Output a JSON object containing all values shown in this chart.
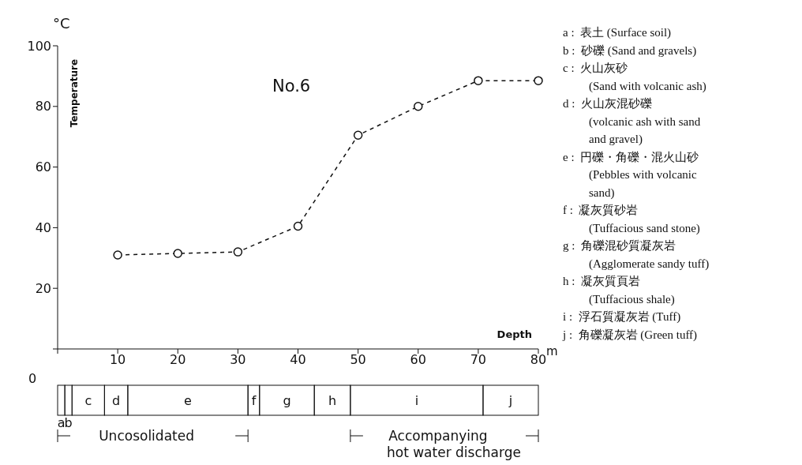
{
  "chart_data": {
    "type": "line",
    "title": "No.6",
    "xlabel": "Depth",
    "ylabel": "Temperature",
    "x": [
      10,
      20,
      30,
      40,
      50,
      60,
      70,
      80
    ],
    "series": [
      {
        "color": "#111111",
        "values": [
          31,
          31.5,
          32,
          40.5,
          70.5,
          80,
          88.5,
          88.5
        ]
      }
    ],
    "xlim": [
      0,
      80
    ],
    "xticks": [
      {
        "value": 0,
        "label": null
      },
      10,
      20,
      30,
      40,
      50,
      60,
      70,
      80
    ],
    "ylim": [
      0,
      100
    ],
    "yticks": [
      {
        "value": 0,
        "label": null
      },
      20,
      40,
      60,
      80,
      100
    ],
    "grid": false,
    "legend": false,
    "marker": "circle",
    "line_style": "dashed",
    "annotations": [
      "°C",
      "m",
      "0",
      "a",
      "b",
      "c",
      "d",
      "e",
      "f",
      "g",
      "h",
      "i",
      "j",
      "Uncosolidated",
      "Accompanying\nhot water discharge",
      "a :  表土 (Surface soil)",
      "b :  砂礫 (Sand and gravels)",
      "c :  火山灰砂\n(Sand with volcanic ash)",
      "d :  火山灰混砂礫\n(volcanic ash with sand\nand gravel)",
      "e :  円礫・角礫・混火山砂\n(Pebbles with volcanic\nsand)",
      "f :  凝灰質砂岩\n(Tuffacious sand stone)",
      "g :  角礫混砂質凝灰岩\n(Agglomerate sandy tuff)",
      "h :  凝灰質頁岩\n(Tuffacious shale)",
      "i :  浮石質凝灰岩 (Tuff)",
      "j :  角礫凝灰岩 (Green tuff)"
    ]
  }
}
